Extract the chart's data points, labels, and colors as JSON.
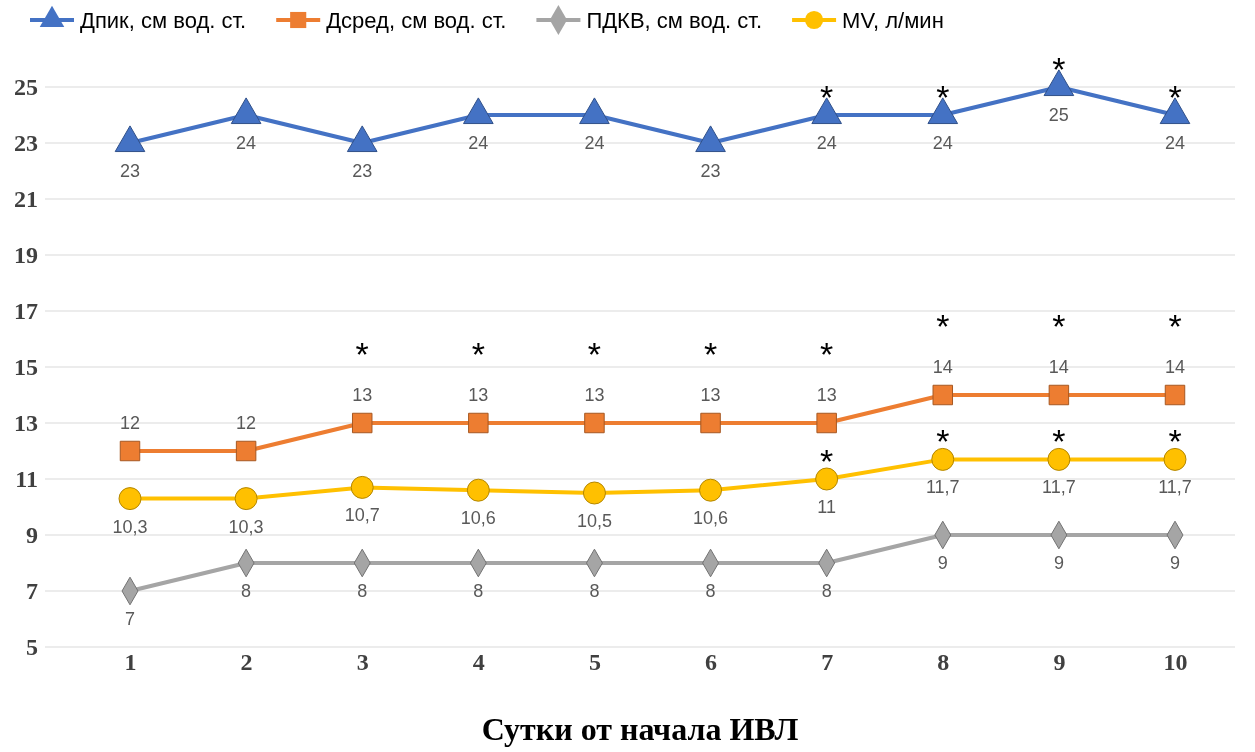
{
  "chart_data": {
    "type": "line",
    "xlabel": "Сутки от начала ИВЛ",
    "categories": [
      "1",
      "2",
      "3",
      "4",
      "5",
      "6",
      "7",
      "8",
      "9",
      "10"
    ],
    "ylim": [
      5,
      25
    ],
    "yticks": [
      5,
      7,
      9,
      11,
      13,
      15,
      17,
      19,
      21,
      23,
      25
    ],
    "grid": "y",
    "legend": "top",
    "line_style": "solid",
    "series": [
      {
        "name": "Дпик, см вод. ст.",
        "color": "#4472c4",
        "marker": "triangle",
        "values": [
          23,
          24,
          23,
          24,
          24,
          23,
          24,
          24,
          25,
          24
        ],
        "value_labels": [
          "23",
          "24",
          "23",
          "24",
          "24",
          "23",
          "24",
          "24",
          "25",
          "24"
        ]
      },
      {
        "name": "Дсред, см вод. ст.",
        "color": "#ed7d31",
        "marker": "square",
        "values": [
          12,
          12,
          13,
          13,
          13,
          13,
          13,
          14,
          14,
          14
        ],
        "value_labels": [
          "12",
          "12",
          "13",
          "13",
          "13",
          "13",
          "13",
          "14",
          "14",
          "14"
        ]
      },
      {
        "name": "ПДКВ, см вод. ст.",
        "color": "#a5a5a5",
        "marker": "diamond",
        "values": [
          7,
          8,
          8,
          8,
          8,
          8,
          8,
          9,
          9,
          9
        ],
        "value_labels": [
          "7",
          "8",
          "8",
          "8",
          "8",
          "8",
          "8",
          "9",
          "9",
          "9"
        ]
      },
      {
        "name": "MV, л/мин",
        "color": "#ffc000",
        "marker": "circle",
        "values": [
          10.3,
          10.3,
          10.7,
          10.6,
          10.5,
          10.6,
          11,
          11.7,
          11.7,
          11.7
        ],
        "value_labels": [
          "10,3",
          "10,3",
          "10,7",
          "10,6",
          "10,5",
          "10,6",
          "11",
          "11,7",
          "11,7",
          "11,7"
        ]
      }
    ],
    "annotations": [
      {
        "text": "*",
        "x": "7",
        "y": 24
      },
      {
        "text": "*",
        "x": "8",
        "y": 24
      },
      {
        "text": "*",
        "x": "9",
        "y": 25
      },
      {
        "text": "*",
        "x": "10",
        "y": 24
      },
      {
        "text": "*",
        "x": "7",
        "y": 11
      },
      {
        "text": "*",
        "x": "8",
        "y": 11.7
      },
      {
        "text": "*",
        "x": "9",
        "y": 11.7
      },
      {
        "text": "*",
        "x": "10",
        "y": 11.7
      },
      {
        "text": "*",
        "x": "3",
        "y": 13
      },
      {
        "text": "*",
        "x": "4",
        "y": 13
      },
      {
        "text": "*",
        "x": "5",
        "y": 13
      },
      {
        "text": "*",
        "x": "6",
        "y": 13
      },
      {
        "text": "*",
        "x": "7",
        "y": 13
      },
      {
        "text": "*",
        "x": "8",
        "y": 14
      },
      {
        "text": "*",
        "x": "9",
        "y": 14
      },
      {
        "text": "*",
        "x": "10",
        "y": 14
      }
    ]
  }
}
